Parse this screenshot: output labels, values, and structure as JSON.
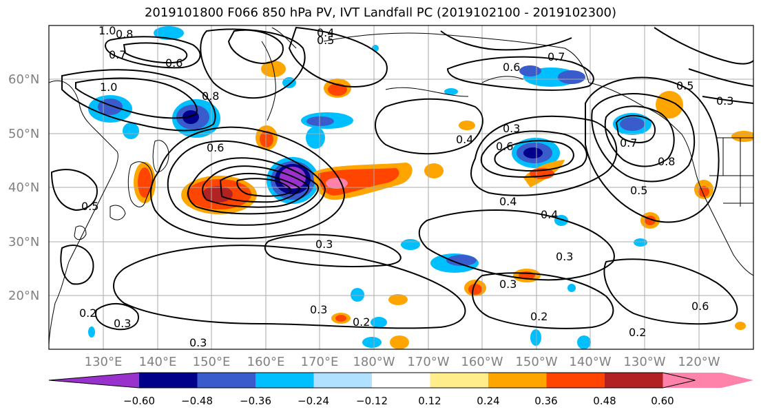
{
  "title": "2019101800 F066 850 hPa PV, IVT Landfall PC (2019102100 - 2019102300)",
  "lat_labels": [
    "60°N",
    "50°N",
    "40°N",
    "30°N",
    "20°N"
  ],
  "lon_labels": [
    "130°E",
    "140°E",
    "150°E",
    "160°E",
    "170°E",
    "180°W",
    "170°W",
    "160°W",
    "150°W",
    "140°W",
    "130°W",
    "120°W"
  ],
  "colorbar": {
    "colors": [
      "#9932cc",
      "#00008b",
      "#3a5bcc",
      "#00bfff",
      "#b0e2ff",
      "#ffffff",
      "#ffec8b",
      "#ffa500",
      "#ff4500",
      "#b22222",
      "#ff82ab"
    ],
    "tick_labels": [
      "−0.60",
      "−0.48",
      "−0.36",
      "−0.24",
      "−0.12",
      "0.12",
      "0.24",
      "0.36",
      "0.48",
      "0.60"
    ]
  },
  "contour_labels": [
    "1.0",
    "0.8",
    "0.7",
    "0.6",
    "1.0",
    "0.4",
    "0.5",
    "0.8",
    "0.7",
    "0.6",
    "0.5",
    "0.3",
    "0.4",
    "0.3",
    "0.6",
    "0.8",
    "0.7",
    "0.5",
    "0.4",
    "0.3",
    "0.3",
    "0.2",
    "0.3",
    "0.2",
    "0.2",
    "0.6",
    "0.2",
    "0.3",
    "0.5",
    "0.3",
    "0.6",
    "0.4",
    "0.3"
  ]
}
